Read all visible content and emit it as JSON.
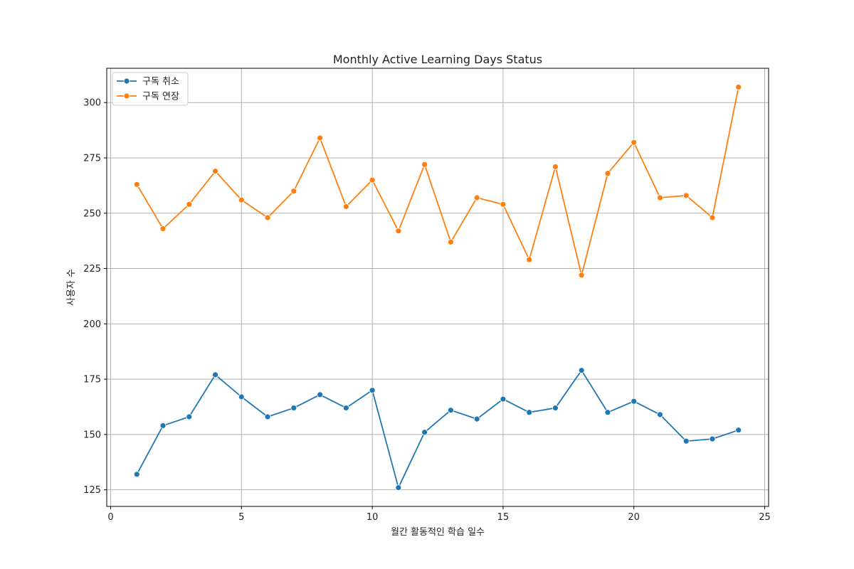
{
  "chart_data": {
    "type": "line",
    "title": "Monthly Active Learning Days Status",
    "xlabel": "월간 활동적인 학습 일수",
    "ylabel": "사용자 수",
    "xlim": [
      -0.15,
      25.15
    ],
    "ylim": [
      117.5,
      315.5
    ],
    "xticks": [
      0,
      5,
      10,
      15,
      20,
      25
    ],
    "yticks": [
      125,
      150,
      175,
      200,
      225,
      250,
      275,
      300
    ],
    "grid": true,
    "legend_position": "top-left",
    "x": [
      1,
      2,
      3,
      4,
      5,
      6,
      7,
      8,
      9,
      10,
      11,
      12,
      13,
      14,
      15,
      16,
      17,
      18,
      19,
      20,
      21,
      22,
      23,
      24
    ],
    "series": [
      {
        "name": "구독 취소",
        "color": "#1f77b4",
        "values": [
          132,
          154,
          158,
          177,
          167,
          158,
          162,
          168,
          162,
          170,
          126,
          151,
          161,
          157,
          166,
          160,
          162,
          179,
          160,
          165,
          159,
          147,
          148,
          152
        ]
      },
      {
        "name": "구독 연장",
        "color": "#ff7f0e",
        "values": [
          263,
          243,
          254,
          269,
          256,
          248,
          260,
          284,
          253,
          265,
          242,
          272,
          237,
          257,
          254,
          229,
          271,
          222,
          268,
          282,
          257,
          258,
          248,
          307
        ]
      }
    ]
  }
}
